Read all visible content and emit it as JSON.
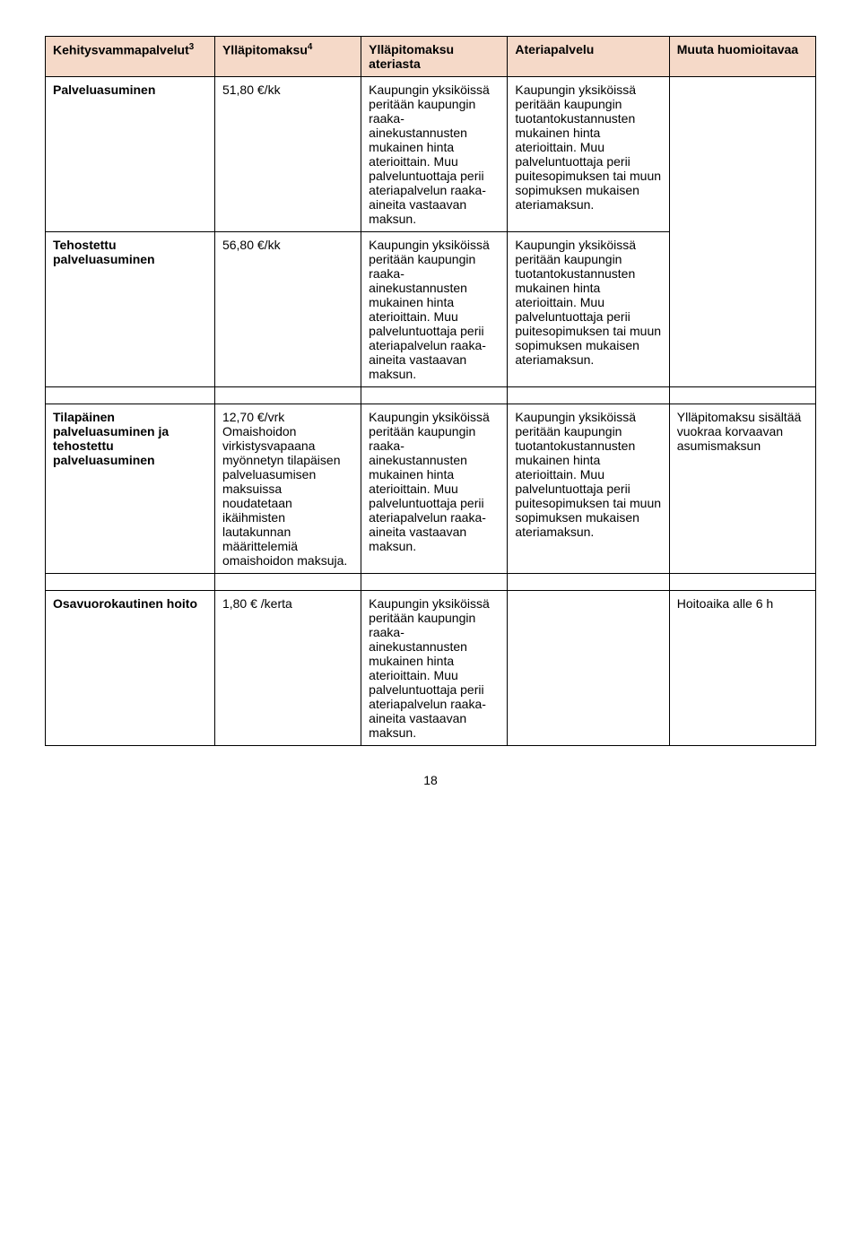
{
  "headers": {
    "col0": "Kehitysvammapalvelut",
    "col0_sup": "3",
    "col1": "Ylläpitomaksu",
    "col1_sup": "4",
    "col2": "Ylläpitomaksu ateriasta",
    "col3": "Ateriapalvelu",
    "col4": "Muuta huomioitavaa"
  },
  "rows": [
    {
      "c0": "Palveluasuminen",
      "c0_bold": true,
      "c1": "51,80 €/kk",
      "c2": "Kaupungin yksiköissä peritään kaupungin raaka-ainekustannusten mukainen hinta aterioittain.\nMuu palveluntuottaja perii ateriapalvelun raaka-aineita vastaavan maksun.",
      "c3": "Kaupungin yksiköissä peritään kaupungin tuotantokustannusten mukainen hinta aterioittain.\nMuu palveluntuottaja perii puitesopimuksen tai muun sopimuksen mukaisen ateriamaksun.",
      "c4": ""
    },
    {
      "c0": "Tehostettu palveluasuminen",
      "c0_bold": true,
      "c1": "56,80 €/kk",
      "c2": "Kaupungin yksiköissä peritään kaupungin raaka-ainekustannusten mukainen hinta aterioittain.\nMuu palveluntuottaja perii ateriapalvelun raaka-aineita vastaavan maksun.",
      "c3": "Kaupungin yksiköissä peritään kaupungin tuotantokustannusten mukainen hinta aterioittain.\nMuu palveluntuottaja perii puitesopimuksen tai muun sopimuksen mukaisen ateriamaksun.",
      "c4": ""
    }
  ],
  "row3": {
    "c0": "Tilapäinen palveluasuminen ja tehostettu palveluasuminen",
    "c0_bold": true,
    "c1": "12,70 €/vrk\nOmaishoidon virkistysvapaana myönnetyn tilapäisen palveluasumisen maksuissa noudatetaan ikäihmisten lautakunnan määrittelemiä omaishoidon maksuja.",
    "c2": "Kaupungin yksiköissä peritään kaupungin raaka-ainekustannusten mukainen hinta aterioittain.\nMuu palveluntuottaja perii ateriapalvelun raaka-aineita vastaavan maksun.",
    "c3": "Kaupungin yksiköissä peritään kaupungin tuotantokustannusten mukainen hinta aterioittain.\nMuu palveluntuottaja perii puitesopimuksen tai muun sopimuksen mukaisen ateriamaksun.",
    "c4": "Ylläpitomaksu sisältää vuokraa korvaavan asumismaksun"
  },
  "row4": {
    "c0": "Osavuorokautinen hoito",
    "c0_bold": true,
    "c1": "1,80 € /kerta",
    "c2": "Kaupungin yksiköissä peritään kaupungin raaka-ainekustannusten mukainen hinta aterioittain.\nMuu palveluntuottaja perii ateriapalvelun raaka-aineita vastaavan maksun.",
    "c3": "",
    "c4": "Hoitoaika alle 6 h"
  },
  "page_number": "18"
}
